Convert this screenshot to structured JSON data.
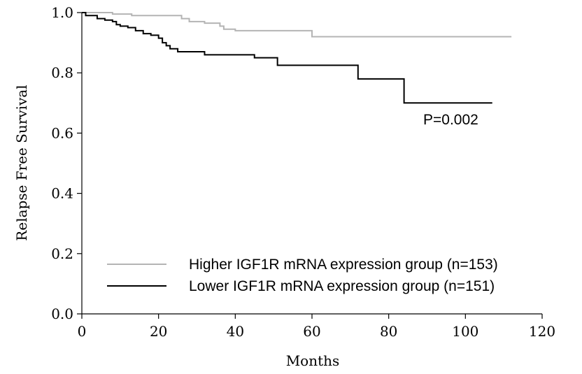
{
  "chart_data": {
    "type": "line",
    "title": "",
    "xlabel": "Months",
    "ylabel": "Relapse Free Survival",
    "xlim": [
      0,
      120
    ],
    "ylim": [
      0.0,
      1.0
    ],
    "xticks": [
      0,
      20,
      40,
      60,
      80,
      100,
      120
    ],
    "xtick_labels": [
      "0",
      "20",
      "40",
      "60",
      "80",
      "100",
      "120"
    ],
    "yticks": [
      0.0,
      0.2,
      0.4,
      0.6,
      0.8,
      1.0
    ],
    "ytick_labels": [
      "0.0",
      "0.2",
      "0.4",
      "0.6",
      "0.8",
      "1.0"
    ],
    "grid": false,
    "legend_position": "bottom",
    "annotation": {
      "text": "P=0.002",
      "x": 89,
      "y": 0.68
    },
    "series": [
      {
        "name": "Higher IGF1R mRNA expression group (n=153)",
        "color": "#b4b4b4",
        "step": true,
        "x": [
          0,
          8,
          13,
          26,
          28,
          32,
          36,
          37,
          40,
          60,
          112
        ],
        "y": [
          1.0,
          0.995,
          0.99,
          0.98,
          0.97,
          0.965,
          0.955,
          0.945,
          0.94,
          0.92,
          0.92
        ]
      },
      {
        "name": "Lower IGF1R mRNA expression group (n=151)",
        "color": "#000000",
        "step": true,
        "x": [
          0,
          1,
          4,
          6,
          8,
          9,
          10,
          12,
          14,
          16,
          18,
          20,
          21,
          22,
          23,
          25,
          32,
          45,
          51,
          60,
          72,
          84,
          107
        ],
        "y": [
          1.0,
          0.99,
          0.98,
          0.975,
          0.97,
          0.96,
          0.955,
          0.95,
          0.94,
          0.93,
          0.925,
          0.915,
          0.9,
          0.89,
          0.88,
          0.87,
          0.86,
          0.85,
          0.825,
          0.825,
          0.78,
          0.7,
          0.7
        ]
      }
    ]
  }
}
